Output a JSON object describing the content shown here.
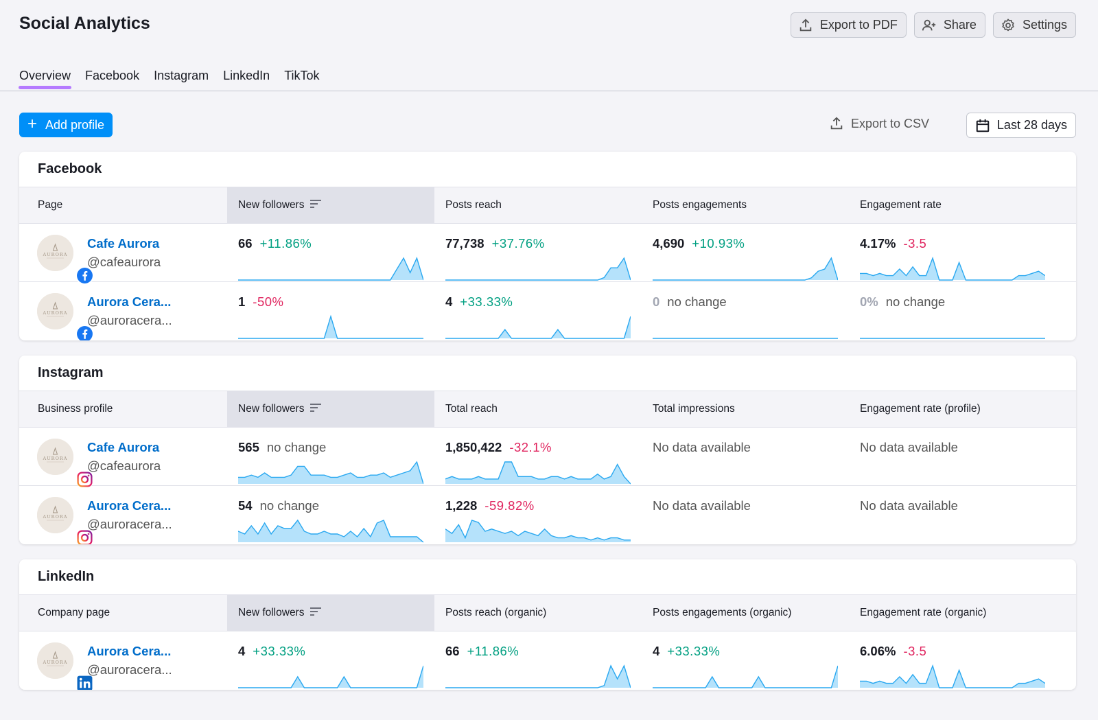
{
  "header": {
    "title": "Social Analytics",
    "export_pdf": "Export to PDF",
    "share": "Share",
    "settings": "Settings"
  },
  "tabs": [
    {
      "label": "Overview",
      "active": true
    },
    {
      "label": "Facebook"
    },
    {
      "label": "Instagram"
    },
    {
      "label": "LinkedIn"
    },
    {
      "label": "TikTok"
    }
  ],
  "toolbar": {
    "add_profile": "Add profile",
    "export_csv": "Export to CSV",
    "date_range": "Last 28 days"
  },
  "colors": {
    "accent": "#008ff8",
    "tab_underline": "#b57bff",
    "link": "#006dca",
    "positive": "#009f81",
    "negative": "#e0245e",
    "spark_line": "#29a8f0",
    "spark_fill": "#b5e2fb"
  },
  "sections": [
    {
      "title": "Facebook",
      "network_icon": "facebook-icon",
      "columns": [
        "Page",
        "New followers",
        "Posts reach",
        "Posts engagements",
        "Engagement rate"
      ],
      "sorted_column": 1,
      "rows": [
        {
          "name": "Cafe Aurora",
          "handle": "@cafeaurora",
          "metrics": [
            {
              "value": "66",
              "change": "+11.86%",
              "trend": "pos",
              "spark": [
                0,
                0,
                0,
                0,
                0,
                0,
                0,
                0,
                0,
                0,
                0,
                0,
                0,
                0,
                0,
                0,
                0,
                0,
                0,
                0,
                0,
                0,
                0,
                0,
                6,
                12,
                4,
                12,
                0
              ]
            },
            {
              "value": "77,738",
              "change": "+37.76%",
              "trend": "pos",
              "spark": [
                0,
                0,
                0,
                0,
                0,
                0,
                0,
                0,
                0,
                0,
                0,
                0,
                0,
                0,
                0,
                0,
                0,
                0,
                0,
                0,
                0,
                0,
                0,
                0,
                1,
                5,
                5,
                9,
                0
              ]
            },
            {
              "value": "4,690",
              "change": "+10.93%",
              "trend": "pos",
              "spark": [
                0,
                0,
                0,
                0,
                0,
                0,
                0,
                0,
                0,
                0,
                0,
                0,
                0,
                0,
                0,
                0,
                0,
                0,
                0,
                0,
                0,
                0,
                0,
                0,
                1,
                4,
                5,
                10,
                0
              ]
            },
            {
              "value": "4.17%",
              "change": "-3.5",
              "trend": "neg",
              "spark": [
                3,
                3,
                2,
                3,
                2,
                2,
                5,
                2,
                6,
                2,
                2,
                10,
                0,
                0,
                0,
                8,
                0,
                0,
                0,
                0,
                0,
                0,
                0,
                0,
                2,
                2,
                3,
                4,
                2
              ]
            }
          ]
        },
        {
          "name": "Aurora Cera...",
          "handle": "@auroracera...",
          "metrics": [
            {
              "value": "1",
              "change": "-50%",
              "trend": "neg",
              "spark": [
                0,
                0,
                0,
                0,
                0,
                0,
                0,
                0,
                0,
                0,
                0,
                0,
                0,
                0,
                10,
                0,
                0,
                0,
                0,
                0,
                0,
                0,
                0,
                0,
                0,
                0,
                0,
                0,
                0
              ]
            },
            {
              "value": "4",
              "change": "+33.33%",
              "trend": "pos",
              "spark": [
                0,
                0,
                0,
                0,
                0,
                0,
                0,
                0,
                0,
                4,
                0,
                0,
                0,
                0,
                0,
                0,
                0,
                4,
                0,
                0,
                0,
                0,
                0,
                0,
                0,
                0,
                0,
                0,
                10
              ]
            },
            {
              "value": "0",
              "change": "no change",
              "trend": "none",
              "zero": true,
              "spark": [
                0,
                0,
                0,
                0,
                0,
                0,
                0,
                0,
                0,
                0,
                0,
                0,
                0,
                0,
                0,
                0,
                0,
                0,
                0,
                0,
                0,
                0,
                0,
                0,
                0,
                0,
                0,
                0,
                0
              ]
            },
            {
              "value": "0%",
              "change": "no change",
              "trend": "none",
              "zero": true,
              "spark": [
                0,
                0,
                0,
                0,
                0,
                0,
                0,
                0,
                0,
                0,
                0,
                0,
                0,
                0,
                0,
                0,
                0,
                0,
                0,
                0,
                0,
                0,
                0,
                0,
                0,
                0,
                0,
                0,
                0
              ]
            }
          ]
        }
      ]
    },
    {
      "title": "Instagram",
      "network_icon": "instagram-icon",
      "columns": [
        "Business profile",
        "New followers",
        "Total reach",
        "Total impressions",
        "Engagement rate (profile)"
      ],
      "sorted_column": 1,
      "rows": [
        {
          "name": "Cafe Aurora",
          "handle": "@cafeaurora",
          "metrics": [
            {
              "value": "565",
              "change": "no change",
              "trend": "none",
              "spark": [
                3,
                3,
                4,
                3,
                5,
                3,
                3,
                3,
                4,
                8,
                8,
                4,
                4,
                4,
                3,
                3,
                4,
                5,
                3,
                3,
                4,
                4,
                5,
                3,
                4,
                5,
                6,
                10,
                0
              ]
            },
            {
              "value": "1,850,422",
              "change": "-32.1%",
              "trend": "neg",
              "spark": [
                2,
                3,
                2,
                2,
                2,
                3,
                2,
                2,
                2,
                9,
                9,
                3,
                3,
                3,
                2,
                2,
                3,
                3,
                2,
                3,
                2,
                2,
                2,
                4,
                2,
                3,
                8,
                3,
                0
              ]
            },
            {
              "nodata": "No data available"
            },
            {
              "nodata": "No data available"
            }
          ]
        },
        {
          "name": "Aurora Cera...",
          "handle": "@auroracera...",
          "metrics": [
            {
              "value": "54",
              "change": "no change",
              "trend": "none",
              "spark": [
                4,
                3,
                6,
                3,
                7,
                3,
                6,
                5,
                5,
                8,
                4,
                3,
                3,
                4,
                3,
                3,
                2,
                4,
                2,
                5,
                2,
                7,
                8,
                2,
                2,
                2,
                2,
                2,
                0
              ]
            },
            {
              "value": "1,228",
              "change": "-59.82%",
              "trend": "neg",
              "spark": [
                6,
                4,
                8,
                2,
                10,
                9,
                5,
                6,
                5,
                4,
                5,
                3,
                5,
                4,
                3,
                6,
                3,
                2,
                2,
                3,
                2,
                2,
                1,
                2,
                1,
                2,
                2,
                1,
                1
              ]
            },
            {
              "nodata": "No data available"
            },
            {
              "nodata": "No data available"
            }
          ]
        }
      ]
    },
    {
      "title": "LinkedIn",
      "network_icon": "linkedin-icon",
      "columns": [
        "Company page",
        "New followers",
        "Posts reach (organic)",
        "Posts engagements (organic)",
        "Engagement rate (organic)"
      ],
      "sorted_column": 1,
      "rows": [
        {
          "name": "Aurora Cera...",
          "handle": "@auroracera...",
          "metrics": [
            {
              "value": "4",
              "change": "+33.33%",
              "trend": "pos",
              "spark": [
                0,
                0,
                0,
                0,
                0,
                0,
                0,
                0,
                0,
                5,
                0,
                0,
                0,
                0,
                0,
                0,
                5,
                0,
                0,
                0,
                0,
                0,
                0,
                0,
                0,
                0,
                0,
                0,
                10
              ]
            },
            {
              "value": "66",
              "change": "+11.86%",
              "trend": "pos",
              "spark": [
                0,
                0,
                0,
                0,
                0,
                0,
                0,
                0,
                0,
                0,
                0,
                0,
                0,
                0,
                0,
                0,
                0,
                0,
                0,
                0,
                0,
                0,
                0,
                0,
                1,
                10,
                4,
                10,
                0
              ]
            },
            {
              "value": "4",
              "change": "+33.33%",
              "trend": "pos",
              "spark": [
                0,
                0,
                0,
                0,
                0,
                0,
                0,
                0,
                0,
                5,
                0,
                0,
                0,
                0,
                0,
                0,
                5,
                0,
                0,
                0,
                0,
                0,
                0,
                0,
                0,
                0,
                0,
                0,
                10
              ]
            },
            {
              "value": "6.06%",
              "change": "-3.5",
              "trend": "neg",
              "spark": [
                3,
                3,
                2,
                3,
                2,
                2,
                5,
                2,
                6,
                2,
                2,
                10,
                0,
                0,
                0,
                8,
                0,
                0,
                0,
                0,
                0,
                0,
                0,
                0,
                2,
                2,
                3,
                4,
                2
              ]
            }
          ]
        }
      ]
    }
  ]
}
